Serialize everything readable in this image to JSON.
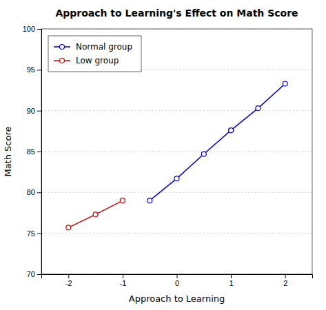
{
  "chart_data": {
    "type": "line",
    "title": "Approach to Learning's Effect on Math Score",
    "xlabel": "Approach to Learning",
    "ylabel": "Math Score",
    "xlim": [
      -2.5,
      2.5
    ],
    "ylim": [
      70,
      100
    ],
    "xticks": [
      -2,
      -1,
      0,
      1,
      2
    ],
    "yticks": [
      70,
      75,
      80,
      85,
      90,
      95,
      100
    ],
    "grid": true,
    "legend": "upper left",
    "marker": "circle",
    "series": [
      {
        "name": "Normal group",
        "color": "#0000CC",
        "x": [
          -0.5,
          0.0,
          0.5,
          1.0,
          1.5,
          2.0
        ],
        "values": [
          79.0,
          81.7,
          84.7,
          87.6,
          90.3,
          93.3
        ]
      },
      {
        "name": "Low group",
        "color": "#CC0000",
        "x": [
          -2.0,
          -1.5,
          -1.0
        ],
        "values": [
          75.7,
          77.3,
          79.0
        ]
      }
    ]
  }
}
